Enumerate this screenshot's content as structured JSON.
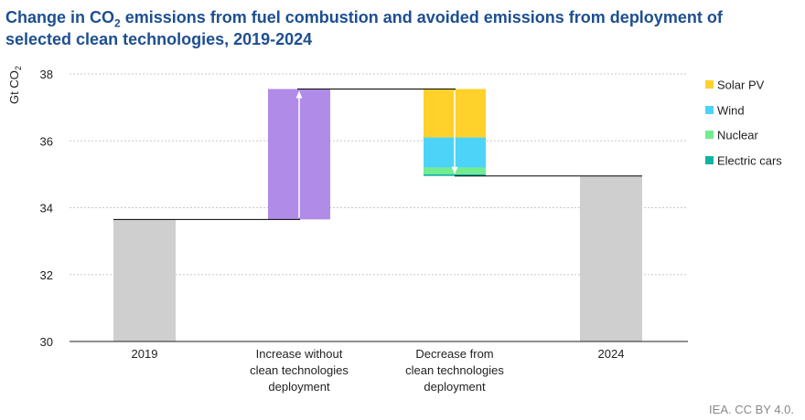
{
  "title_parts": {
    "pre": "Change in CO",
    "sub": "2",
    "post": " emissions from fuel combustion and avoided emissions from deployment of selected clean technologies, 2019-2024"
  },
  "credit": "IEA. CC BY 4.0.",
  "colors": {
    "baseline": "#d0cfd0",
    "increase": "#b18be8",
    "solar": "#ffd12a",
    "wind": "#4dd3f7",
    "nuclear": "#72ec8f",
    "ev": "#11b3a0",
    "grid": "#c8c8c8",
    "axis": "#222222",
    "connector": "#000000"
  },
  "chart_data": {
    "type": "bar",
    "subtype": "waterfall",
    "ylabel": "Gt CO2",
    "ylim": [
      30,
      38
    ],
    "yticks": [
      30,
      32,
      34,
      36,
      38
    ],
    "grid": true,
    "legend_position": "right",
    "categories": [
      [
        "2019"
      ],
      [
        "Increase without",
        "clean technologies",
        "deployment"
      ],
      [
        "Decrease from",
        "clean technologies",
        "deployment"
      ],
      [
        "2024"
      ]
    ],
    "start_2019": 33.65,
    "increase_without_clean_tech": 3.9,
    "decrease_components": [
      {
        "name": "Solar PV",
        "value": 1.45
      },
      {
        "name": "Wind",
        "value": 0.9
      },
      {
        "name": "Nuclear",
        "value": 0.2
      },
      {
        "name": "Electric cars",
        "value": 0.05
      }
    ],
    "end_2024": 34.95,
    "series": [
      {
        "name": "Solar PV",
        "color_key": "solar"
      },
      {
        "name": "Wind",
        "color_key": "wind"
      },
      {
        "name": "Nuclear",
        "color_key": "nuclear"
      },
      {
        "name": "Electric cars",
        "color_key": "ev"
      }
    ]
  }
}
